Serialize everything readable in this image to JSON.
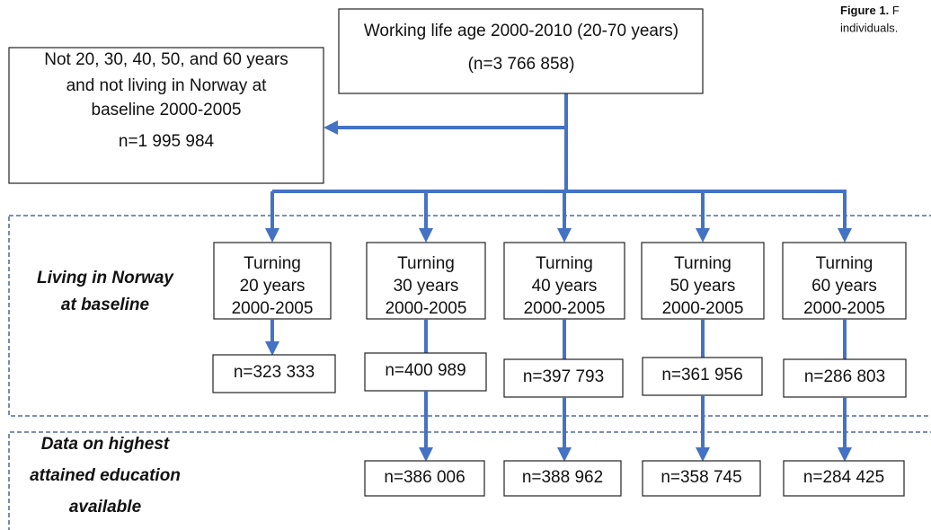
{
  "caption": {
    "label": "Figure 1.",
    "text": "F",
    "line2": "individuals."
  },
  "top": {
    "title": "Working life age 2000-2010 (20-70 years)",
    "n": "(n=3 766 858)"
  },
  "excluded": {
    "lines": [
      "Not 20, 30, 40, 50, and 60 years",
      "and not living in Norway at",
      "baseline 2000-2005"
    ],
    "n": "n=1 995 984"
  },
  "sections": [
    [
      "Living in Norway",
      "at baseline"
    ],
    [
      "Data on highest",
      "attained education",
      "available"
    ]
  ],
  "columns": [
    {
      "label": [
        "Turning",
        "20 years",
        "2000-2005"
      ],
      "n": "n=323 333"
    },
    {
      "label": [
        "Turning",
        "30 years",
        "2000-2005"
      ],
      "n": "n=400 989",
      "education_n": "n=386 006"
    },
    {
      "label": [
        "Turning",
        "40 years",
        "2000-2005"
      ],
      "n": "n=397 793",
      "education_n": "n=388 962"
    },
    {
      "label": [
        "Turning",
        "50 years",
        "2000-2005"
      ],
      "n": "n=361 956",
      "education_n": "n=358 745"
    },
    {
      "label": [
        "Turning",
        "60 years",
        "2000-2005"
      ],
      "n": "n=286 803",
      "education_n": "n=284 425"
    }
  ]
}
